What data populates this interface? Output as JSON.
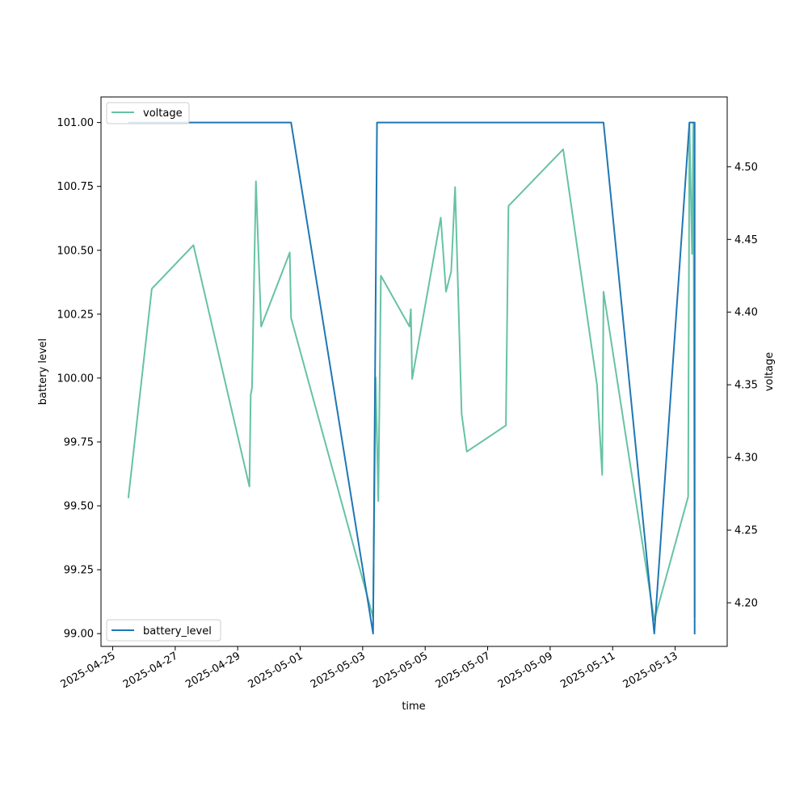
{
  "chart_data": {
    "type": "line",
    "xlabel": "time",
    "y_left_label": "battery level",
    "y_right_label": "voltage",
    "x_range": [
      "2025-04-24T15:00",
      "2025-05-14T16:00"
    ],
    "y_left_range": [
      98.95,
      101.1
    ],
    "y_right_range": [
      4.17,
      4.548
    ],
    "x_ticks": [
      "2025-04-25",
      "2025-04-27",
      "2025-04-29",
      "2025-05-01",
      "2025-05-03",
      "2025-05-05",
      "2025-05-07",
      "2025-05-09",
      "2025-05-11",
      "2025-05-13"
    ],
    "y_left_ticks": [
      "99.00",
      "99.25",
      "99.50",
      "99.75",
      "100.00",
      "100.25",
      "100.50",
      "100.75",
      "101.00"
    ],
    "y_right_ticks": [
      "4.20",
      "4.25",
      "4.30",
      "4.35",
      "4.40",
      "4.45",
      "4.50"
    ],
    "grid": false,
    "series": [
      {
        "name": "battery_level",
        "axis": "left",
        "color": "#1f77b4",
        "legend_position": "lower-left",
        "points": [
          [
            "2025-04-25T12:00",
            101.0
          ],
          [
            "2025-04-30T17:00",
            101.0
          ],
          [
            "2025-05-03T08:00",
            99.0
          ],
          [
            "2025-05-03T11:00",
            101.0
          ],
          [
            "2025-05-10T17:00",
            101.0
          ],
          [
            "2025-05-12T08:00",
            99.0
          ],
          [
            "2025-05-13T11:00",
            101.0
          ],
          [
            "2025-05-13T15:00",
            101.0
          ],
          [
            "2025-05-13T15:00",
            99.0
          ],
          [
            "2025-05-13T15:00",
            101.0
          ]
        ]
      },
      {
        "name": "voltage",
        "axis": "right",
        "color": "#66c2a5",
        "legend_position": "upper-left",
        "points": [
          [
            "2025-04-25T12:00",
            4.272
          ],
          [
            "2025-04-26T06:00",
            4.416
          ],
          [
            "2025-04-27T14:00",
            4.446
          ],
          [
            "2025-04-29T09:00",
            4.28
          ],
          [
            "2025-04-29T10:00",
            4.343
          ],
          [
            "2025-04-29T11:00",
            4.348
          ],
          [
            "2025-04-29T14:00",
            4.49
          ],
          [
            "2025-04-29T18:00",
            4.39
          ],
          [
            "2025-04-30T16:00",
            4.441
          ],
          [
            "2025-04-30T17:00",
            4.396
          ],
          [
            "2025-05-03T08:00",
            4.19
          ],
          [
            "2025-05-03T10:00",
            4.355
          ],
          [
            "2025-05-03T12:00",
            4.27
          ],
          [
            "2025-05-03T14:00",
            4.425
          ],
          [
            "2025-05-04T12:00",
            4.39
          ],
          [
            "2025-05-04T13:00",
            4.402
          ],
          [
            "2025-05-04T14:00",
            4.354
          ],
          [
            "2025-05-05T12:00",
            4.465
          ],
          [
            "2025-05-05T16:00",
            4.414
          ],
          [
            "2025-05-05T20:00",
            4.428
          ],
          [
            "2025-05-05T23:00",
            4.486
          ],
          [
            "2025-05-06T04:00",
            4.33
          ],
          [
            "2025-05-06T08:00",
            4.304
          ],
          [
            "2025-05-07T14:00",
            4.322
          ],
          [
            "2025-05-07T16:00",
            4.473
          ],
          [
            "2025-05-09T10:00",
            4.512
          ],
          [
            "2025-05-10T12:00",
            4.35
          ],
          [
            "2025-05-10T16:00",
            4.288
          ],
          [
            "2025-05-10T17:00",
            4.414
          ],
          [
            "2025-05-12T08:00",
            4.188
          ],
          [
            "2025-05-13T10:00",
            4.273
          ],
          [
            "2025-05-13T11:00",
            4.53
          ],
          [
            "2025-05-13T13:00",
            4.44
          ],
          [
            "2025-05-13T14:00",
            4.53
          ],
          [
            "2025-05-13T15:00",
            4.19
          ]
        ]
      }
    ]
  }
}
